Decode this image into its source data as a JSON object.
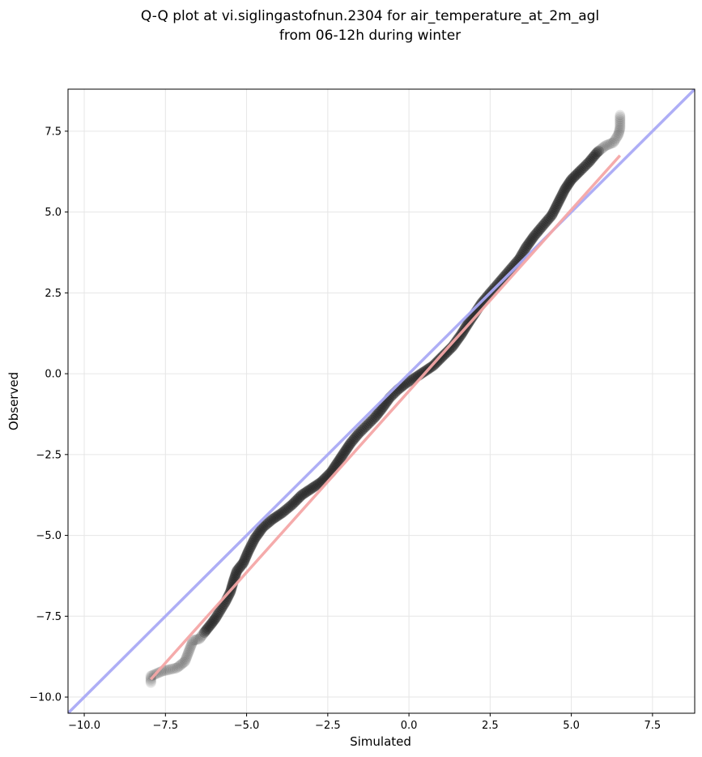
{
  "chart_data": {
    "type": "scatter",
    "title_lines": [
      "Q-Q plot at vi.siglingastofnun.2304 for air_temperature_at_2m_agl",
      "from 06-12h during winter"
    ],
    "xlabel": "Simulated",
    "ylabel": "Observed",
    "xlim": [
      -10.5,
      8.8
    ],
    "ylim": [
      -10.5,
      8.8
    ],
    "x_ticks": [
      -10.0,
      -7.5,
      -5.0,
      -2.5,
      0.0,
      2.5,
      5.0,
      7.5
    ],
    "y_ticks": [
      -10.0,
      -7.5,
      -5.0,
      -2.5,
      0.0,
      2.5,
      5.0,
      7.5
    ],
    "x_tick_labels": [
      "−10.0",
      "−7.5",
      "−5.0",
      "−2.5",
      "0.0",
      "2.5",
      "5.0",
      "7.5"
    ],
    "y_tick_labels": [
      "−10.0",
      "−7.5",
      "−5.0",
      "−2.5",
      "0.0",
      "2.5",
      "5.0",
      "7.5"
    ],
    "grid": true,
    "quantile_curve": [
      [
        -7.95,
        -9.55
      ],
      [
        -7.95,
        -9.35
      ],
      [
        -7.6,
        -9.2
      ],
      [
        -7.15,
        -9.1
      ],
      [
        -6.9,
        -8.9
      ],
      [
        -6.65,
        -8.25
      ],
      [
        -6.45,
        -8.2
      ],
      [
        -6.3,
        -8.0
      ],
      [
        -6.1,
        -7.75
      ],
      [
        -5.95,
        -7.55
      ],
      [
        -5.8,
        -7.3
      ],
      [
        -5.65,
        -7.05
      ],
      [
        -5.5,
        -6.75
      ],
      [
        -5.4,
        -6.4
      ],
      [
        -5.3,
        -6.1
      ],
      [
        -5.1,
        -5.85
      ],
      [
        -4.95,
        -5.5
      ],
      [
        -4.75,
        -5.1
      ],
      [
        -4.5,
        -4.75
      ],
      [
        -4.2,
        -4.5
      ],
      [
        -3.9,
        -4.3
      ],
      [
        -3.6,
        -4.05
      ],
      [
        -3.3,
        -3.75
      ],
      [
        -3.0,
        -3.55
      ],
      [
        -2.7,
        -3.35
      ],
      [
        -2.4,
        -3.05
      ],
      [
        -2.2,
        -2.75
      ],
      [
        -2.0,
        -2.45
      ],
      [
        -1.8,
        -2.15
      ],
      [
        -1.55,
        -1.85
      ],
      [
        -1.3,
        -1.6
      ],
      [
        -1.05,
        -1.35
      ],
      [
        -0.85,
        -1.1
      ],
      [
        -0.6,
        -0.75
      ],
      [
        -0.35,
        -0.5
      ],
      [
        -0.1,
        -0.3
      ],
      [
        0.15,
        -0.15
      ],
      [
        0.45,
        0.05
      ],
      [
        0.75,
        0.25
      ],
      [
        1.05,
        0.55
      ],
      [
        1.35,
        0.85
      ],
      [
        1.6,
        1.2
      ],
      [
        1.85,
        1.6
      ],
      [
        2.05,
        1.9
      ],
      [
        2.25,
        2.2
      ],
      [
        2.5,
        2.5
      ],
      [
        2.8,
        2.85
      ],
      [
        3.1,
        3.2
      ],
      [
        3.4,
        3.55
      ],
      [
        3.6,
        3.9
      ],
      [
        3.85,
        4.25
      ],
      [
        4.1,
        4.55
      ],
      [
        4.4,
        4.9
      ],
      [
        4.6,
        5.3
      ],
      [
        4.8,
        5.7
      ],
      [
        5.0,
        6.0
      ],
      [
        5.3,
        6.3
      ],
      [
        5.55,
        6.55
      ],
      [
        5.8,
        6.85
      ],
      [
        6.05,
        7.05
      ],
      [
        6.3,
        7.15
      ],
      [
        6.45,
        7.4
      ],
      [
        6.5,
        7.6
      ],
      [
        6.5,
        8.0
      ]
    ],
    "identity_line": {
      "from": -10.5,
      "to": 8.8,
      "color": "#aaaaf5"
    },
    "fit_line": {
      "x": [
        -7.95,
        6.5
      ],
      "y": [
        -9.45,
        6.75
      ],
      "color": "#f4a6a6"
    },
    "colors": {
      "points": "#1a1a1a",
      "identity": "#aaaaf5",
      "fit": "#f4a6a6"
    }
  }
}
